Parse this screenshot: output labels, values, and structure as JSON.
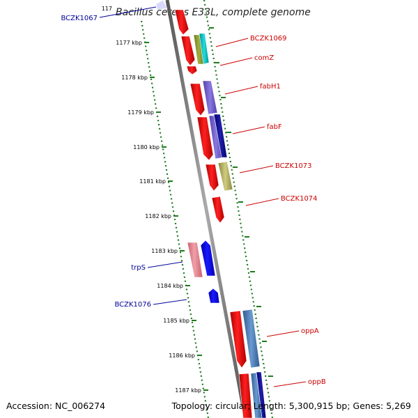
{
  "title": "Bacillus cereus E33L, complete genome",
  "footer": {
    "accession": "Accession: NC_006274",
    "summary": "Topology: circular; Length: 5,300,915 bp; Genes: 5,269"
  },
  "colors": {
    "forward_label": "#cc0000",
    "reverse_label": "#000099",
    "tick": "#1f7a1f",
    "backbone": "#888888"
  },
  "scale_labels": [
    "117",
    "1177 kbp",
    "1178 kbp",
    "1179 kbp",
    "1180 kbp",
    "1181 kbp",
    "1182 kbp",
    "1183 kbp",
    "1184 kbp",
    "1185 kbp",
    "1186 kbp",
    "1187 kbp"
  ],
  "gene_labels": {
    "forward": [
      "BCZK1069",
      "comZ",
      "fabH1",
      "fabF",
      "BCZK1073",
      "BCZK1074",
      "oppA",
      "oppB"
    ],
    "reverse": [
      "BCZK1067",
      "trpS",
      "BCZK1076"
    ]
  }
}
